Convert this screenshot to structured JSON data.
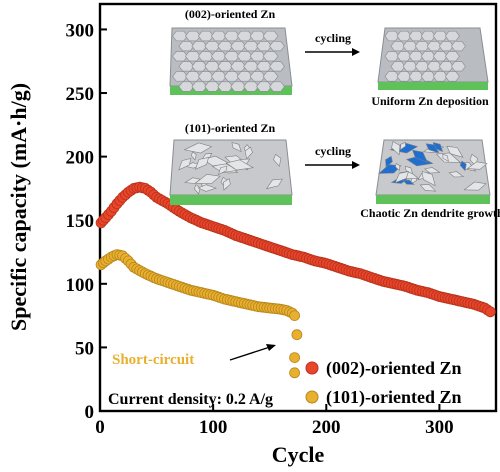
{
  "chart_data": {
    "type": "scatter",
    "xlabel": "Cycle",
    "ylabel": "Specific capacity (mA·h/g)",
    "xlim": [
      0,
      350
    ],
    "ylim": [
      0,
      320
    ],
    "xticks": [
      0,
      100,
      200,
      300
    ],
    "yticks": [
      0,
      50,
      100,
      150,
      200,
      250,
      300
    ],
    "grid": false,
    "legend_position": "bottom-right",
    "series": [
      {
        "name": "(002)-oriented Zn",
        "color": "#e8452a",
        "stroke": "#b8321c",
        "x": [
          1,
          5,
          10,
          15,
          20,
          25,
          30,
          35,
          40,
          45,
          50,
          60,
          70,
          80,
          90,
          100,
          110,
          120,
          130,
          140,
          150,
          160,
          170,
          180,
          190,
          200,
          210,
          220,
          230,
          240,
          250,
          260,
          270,
          280,
          290,
          300,
          310,
          320,
          330,
          340,
          345
        ],
        "y": [
          148,
          152,
          157,
          163,
          168,
          172,
          175,
          176,
          175,
          172,
          168,
          163,
          157,
          152,
          148,
          145,
          142,
          138,
          135,
          132,
          129,
          126,
          123,
          121,
          118,
          116,
          113,
          110,
          108,
          105,
          102,
          100,
          98,
          95,
          93,
          90,
          88,
          86,
          84,
          81,
          78
        ]
      },
      {
        "name": "(101)-oriented Zn",
        "color": "#e8b02e",
        "stroke": "#b8861c",
        "x": [
          1,
          5,
          10,
          15,
          20,
          25,
          30,
          40,
          50,
          60,
          70,
          80,
          90,
          100,
          110,
          120,
          130,
          140,
          150,
          160,
          165,
          170,
          172,
          174,
          172,
          172
        ],
        "y": [
          115,
          118,
          121,
          123,
          122,
          118,
          113,
          108,
          104,
          101,
          98,
          95,
          93,
          91,
          88,
          86,
          84,
          82,
          81,
          80,
          79,
          77,
          75,
          60,
          42,
          30
        ]
      }
    ],
    "annotations": {
      "short_circuit": "Short-circuit",
      "current_density": "Current density: 0.2 A/g"
    }
  },
  "inset": {
    "top_label": "(002)-oriented Zn",
    "top_arrow_label": "cycling",
    "top_result": "Uniform Zn deposition",
    "bottom_label": "(101)-oriented Zn",
    "bottom_arrow_label": "cycling",
    "bottom_result": "Chaotic Zn dendrite growth"
  },
  "colors": {
    "annotation": "#e8b02e",
    "base_green": "#4fc34a",
    "tile_gray": "#c9ccd0",
    "dendrite_blue": "#1e6fd0"
  }
}
